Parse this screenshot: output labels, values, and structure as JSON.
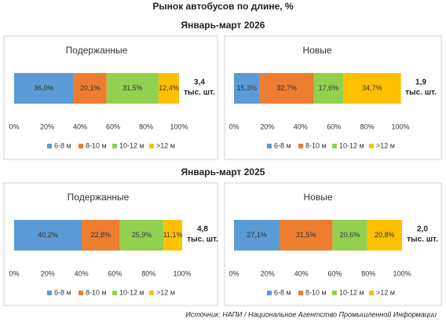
{
  "title": "Рынок автобусов по длине, %",
  "sections": [
    "Январь-март 2026",
    "Январь-март 2025"
  ],
  "source": "Источник: НАПИ / Национальное Агентство Промышленной Информации",
  "chart_data": [
    {
      "type": "stacked-bar",
      "orientation": "horizontal",
      "title": "Подержанные",
      "categories": [
        null
      ],
      "series": [
        {
          "name": "6-8 м",
          "color": "#5b9bd5",
          "values": [
            36.0
          ],
          "value_labels": [
            "36,0%"
          ]
        },
        {
          "name": "8-10 м",
          "color": "#ed7d31",
          "values": [
            20.1
          ],
          "value_labels": [
            "20,1%"
          ]
        },
        {
          "name": "10-12 м",
          "color": "#92d050",
          "values": [
            31.5
          ],
          "value_labels": [
            "31,5%"
          ]
        },
        {
          "name": ">12 м",
          "color": "#ffc000",
          "values": [
            12.4
          ],
          "value_labels": [
            "12,4%"
          ]
        }
      ],
      "total_label": [
        "3,4",
        "тыс. шт."
      ],
      "xlim": [
        0,
        100
      ],
      "xticks": [
        {
          "value": 0,
          "label": "0%"
        },
        {
          "value": 20,
          "label": "20%"
        },
        {
          "value": 40,
          "label": "40%"
        },
        {
          "value": 60,
          "label": "60%"
        },
        {
          "value": 80,
          "label": "80%"
        },
        {
          "value": 100,
          "label": "100%"
        }
      ],
      "grid": false,
      "legend": "bottom"
    },
    {
      "type": "stacked-bar",
      "orientation": "horizontal",
      "title": "Новые",
      "categories": [
        null
      ],
      "series": [
        {
          "name": "6-8 м",
          "color": "#5b9bd5",
          "values": [
            15.3
          ],
          "value_labels": [
            "15,3%"
          ]
        },
        {
          "name": "8-10 м",
          "color": "#ed7d31",
          "values": [
            32.7
          ],
          "value_labels": [
            "32,7%"
          ]
        },
        {
          "name": "10-12 м",
          "color": "#92d050",
          "values": [
            17.6
          ],
          "value_labels": [
            "17,6%"
          ]
        },
        {
          "name": ">12 м",
          "color": "#ffc000",
          "values": [
            34.7
          ],
          "value_labels": [
            "34,7%"
          ]
        }
      ],
      "total_label": [
        "1,9",
        "тыс. шт."
      ],
      "xlim": [
        0,
        100
      ],
      "xticks": [
        {
          "value": 0,
          "label": "0%"
        },
        {
          "value": 20,
          "label": "20%"
        },
        {
          "value": 40,
          "label": "40%"
        },
        {
          "value": 60,
          "label": "60%"
        },
        {
          "value": 80,
          "label": "80%"
        },
        {
          "value": 100,
          "label": "100%"
        }
      ],
      "grid": false,
      "legend": "bottom"
    },
    {
      "type": "stacked-bar",
      "orientation": "horizontal",
      "title": "Подержанные",
      "categories": [
        null
      ],
      "series": [
        {
          "name": "6-8 м",
          "color": "#5b9bd5",
          "values": [
            40.2
          ],
          "value_labels": [
            "40,2%"
          ]
        },
        {
          "name": "8-10 м",
          "color": "#ed7d31",
          "values": [
            22.8
          ],
          "value_labels": [
            "22,8%"
          ]
        },
        {
          "name": "10-12 м",
          "color": "#92d050",
          "values": [
            25.9
          ],
          "value_labels": [
            "25,9%"
          ]
        },
        {
          "name": ">12 м",
          "color": "#ffc000",
          "values": [
            11.1
          ],
          "value_labels": [
            "11,1%"
          ]
        }
      ],
      "total_label": [
        "4,8",
        "тыс. шт."
      ],
      "xlim": [
        0,
        100
      ],
      "xticks": [
        {
          "value": 0,
          "label": "0%"
        },
        {
          "value": 20,
          "label": "20%"
        },
        {
          "value": 40,
          "label": "40%"
        },
        {
          "value": 60,
          "label": "60%"
        },
        {
          "value": 80,
          "label": "80%"
        },
        {
          "value": 100,
          "label": "100%"
        }
      ],
      "grid": false,
      "legend": "bottom"
    },
    {
      "type": "stacked-bar",
      "orientation": "horizontal",
      "title": "Новые",
      "categories": [
        null
      ],
      "series": [
        {
          "name": "6-8 м",
          "color": "#5b9bd5",
          "values": [
            27.1
          ],
          "value_labels": [
            "27,1%"
          ]
        },
        {
          "name": "8-10 м",
          "color": "#ed7d31",
          "values": [
            31.5
          ],
          "value_labels": [
            "31,5%"
          ]
        },
        {
          "name": "10-12 м",
          "color": "#92d050",
          "values": [
            20.6
          ],
          "value_labels": [
            "20,6%"
          ]
        },
        {
          "name": ">12 м",
          "color": "#ffc000",
          "values": [
            20.8
          ],
          "value_labels": [
            "20,8%"
          ]
        }
      ],
      "total_label": [
        "2,0",
        "тыс. шт."
      ],
      "xlim": [
        0,
        100
      ],
      "xticks": [
        {
          "value": 0,
          "label": "0%"
        },
        {
          "value": 20,
          "label": "20%"
        },
        {
          "value": 40,
          "label": "40%"
        },
        {
          "value": 60,
          "label": "60%"
        },
        {
          "value": 80,
          "label": "80%"
        },
        {
          "value": 100,
          "label": "100%"
        }
      ],
      "grid": false,
      "legend": "bottom"
    }
  ]
}
